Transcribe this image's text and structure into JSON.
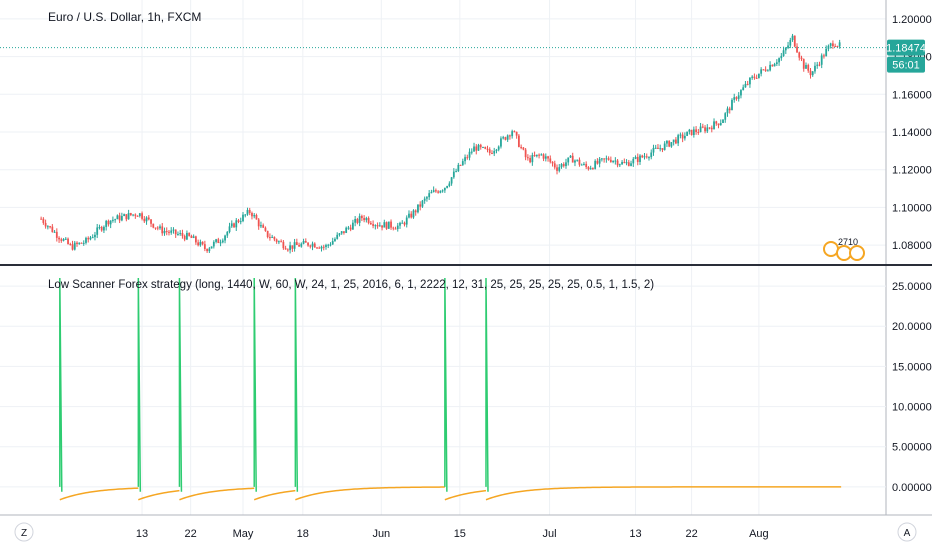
{
  "chart_data": [
    {
      "type": "candlestick",
      "title": "Euro / U.S. Dollar, 1h, FXCM",
      "ylim": [
        1.07,
        1.21
      ],
      "y_ticks": [
        "1.20000",
        "1.18000",
        "1.16000",
        "1.14000",
        "1.12000",
        "1.10000",
        "1.08000"
      ],
      "y_tick_values": [
        1.2,
        1.18,
        1.16,
        1.14,
        1.12,
        1.1,
        1.08
      ],
      "price_label": "1.18474",
      "price_value": 1.18474,
      "countdown_label": "56:01",
      "marker_label": "2710",
      "colors": {
        "up": "#26a69a",
        "down": "#ef5350",
        "price_line": "#26a69a",
        "price_box": "#26a69a"
      },
      "path_anchors": [
        {
          "x": 0,
          "y": 1.094
        },
        {
          "x": 4,
          "y": 1.086
        },
        {
          "x": 8,
          "y": 1.079
        },
        {
          "x": 12,
          "y": 1.082
        },
        {
          "x": 18,
          "y": 1.093
        },
        {
          "x": 26,
          "y": 1.097
        },
        {
          "x": 32,
          "y": 1.088
        },
        {
          "x": 40,
          "y": 1.084
        },
        {
          "x": 44,
          "y": 1.078
        },
        {
          "x": 48,
          "y": 1.083
        },
        {
          "x": 52,
          "y": 1.092
        },
        {
          "x": 56,
          "y": 1.098
        },
        {
          "x": 60,
          "y": 1.086
        },
        {
          "x": 66,
          "y": 1.079
        },
        {
          "x": 72,
          "y": 1.081
        },
        {
          "x": 76,
          "y": 1.079
        },
        {
          "x": 82,
          "y": 1.089
        },
        {
          "x": 86,
          "y": 1.095
        },
        {
          "x": 90,
          "y": 1.091
        },
        {
          "x": 96,
          "y": 1.09
        },
        {
          "x": 100,
          "y": 1.098
        },
        {
          "x": 104,
          "y": 1.107
        },
        {
          "x": 108,
          "y": 1.111
        },
        {
          "x": 112,
          "y": 1.122
        },
        {
          "x": 116,
          "y": 1.132
        },
        {
          "x": 120,
          "y": 1.129
        },
        {
          "x": 126,
          "y": 1.141
        },
        {
          "x": 130,
          "y": 1.125
        },
        {
          "x": 134,
          "y": 1.128
        },
        {
          "x": 138,
          "y": 1.121
        },
        {
          "x": 142,
          "y": 1.126
        },
        {
          "x": 146,
          "y": 1.121
        },
        {
          "x": 152,
          "y": 1.126
        },
        {
          "x": 156,
          "y": 1.123
        },
        {
          "x": 160,
          "y": 1.126
        },
        {
          "x": 164,
          "y": 1.13
        },
        {
          "x": 170,
          "y": 1.136
        },
        {
          "x": 174,
          "y": 1.14
        },
        {
          "x": 178,
          "y": 1.142
        },
        {
          "x": 182,
          "y": 1.146
        },
        {
          "x": 186,
          "y": 1.159
        },
        {
          "x": 190,
          "y": 1.168
        },
        {
          "x": 194,
          "y": 1.174
        },
        {
          "x": 198,
          "y": 1.18
        },
        {
          "x": 201,
          "y": 1.19
        },
        {
          "x": 204,
          "y": 1.175
        },
        {
          "x": 206,
          "y": 1.171
        },
        {
          "x": 210,
          "y": 1.183
        },
        {
          "x": 212,
          "y": 1.188
        },
        {
          "x": 214,
          "y": 1.185
        }
      ]
    },
    {
      "type": "line",
      "title": "Low Scanner Forex strategy (long, 1440, W, 60, W, 24, 1, 25, 2016, 6, 1, 2222, 12, 31, 25, 25, 25, 25, 25, 0.5, 1, 1.5, 2)",
      "ylim": [
        -3.5,
        27.5
      ],
      "y_ticks": [
        "25.00000",
        "20.00000",
        "15.00000",
        "10.00000",
        "5.00000",
        "0.00000"
      ],
      "y_tick_values": [
        25,
        20,
        15,
        10,
        5,
        0
      ],
      "series": [
        {
          "color": "#2ecc71",
          "spikes": [
            {
              "x": 5,
              "y": 26
            },
            {
              "x": 26,
              "y": 26
            },
            {
              "x": 37,
              "y": 26
            },
            {
              "x": 57,
              "y": 26
            },
            {
              "x": 68,
              "y": 26
            },
            {
              "x": 108,
              "y": 26
            },
            {
              "x": 119,
              "y": 26
            }
          ]
        },
        {
          "color": "#f5a623"
        }
      ]
    }
  ],
  "x_axis": {
    "labels": [
      "13",
      "22",
      "May",
      "18",
      "Jun",
      "15",
      "Jul",
      "13",
      "22",
      "Aug"
    ],
    "label_x": [
      27,
      40,
      54,
      70,
      91,
      112,
      136,
      159,
      174,
      192
    ],
    "xlim": [
      -11,
      226
    ]
  },
  "bottom_bar": {
    "left_button": "Z",
    "right_button": "A"
  },
  "colors": {
    "grid": "#eef1f5",
    "text": "#131722",
    "axis_border": "#b2b5be",
    "divider": "#2a2e39"
  }
}
